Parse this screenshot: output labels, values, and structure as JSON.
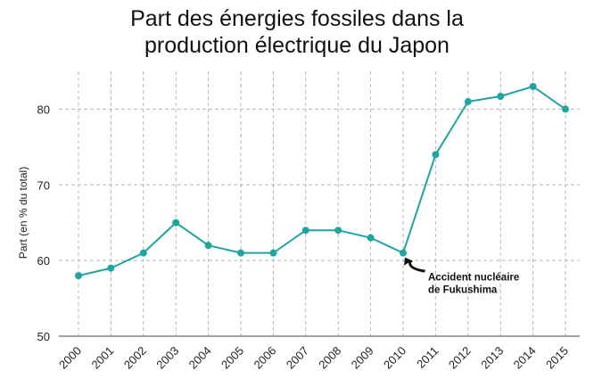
{
  "chart_data": {
    "type": "line",
    "title_lines": [
      "Part des énergies fossiles dans la",
      "production électrique du Japon"
    ],
    "xlabel": "",
    "ylabel": "Part (en % du total)",
    "x": [
      "2000",
      "2001",
      "2002",
      "2003",
      "2004",
      "2005",
      "2006",
      "2007",
      "2008",
      "2009",
      "2010",
      "2011",
      "2012",
      "2013",
      "2014",
      "2015"
    ],
    "series": [
      {
        "values": [
          58,
          59,
          61,
          65,
          62,
          61,
          61,
          64,
          64,
          63,
          61,
          74,
          81,
          81.7,
          83,
          80
        ]
      }
    ],
    "ylim": [
      50,
      85
    ],
    "yticks": [
      50,
      60,
      70,
      80
    ],
    "grid": true,
    "line_color": "#1fa5a0",
    "grid_color": "#b8b8b8",
    "annotation": {
      "lines": [
        "Accident nucléaire",
        "de Fukushima"
      ],
      "x": "2010",
      "y": 61
    }
  }
}
